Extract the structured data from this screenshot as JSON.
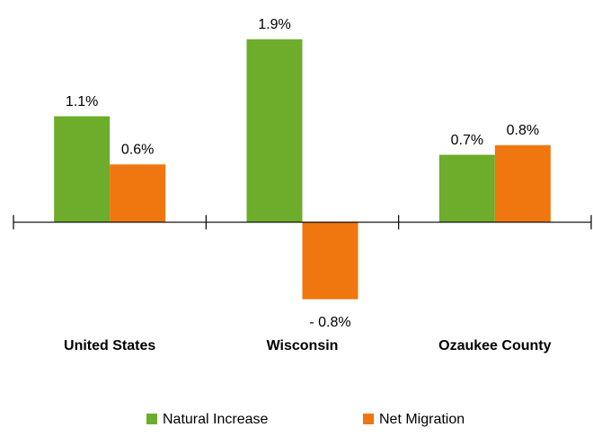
{
  "chart_data": {
    "type": "bar",
    "categories": [
      "United States",
      "Wisconsin",
      "Ozaukee County"
    ],
    "series": [
      {
        "name": "Natural Increase",
        "color": "#6eac2c",
        "values": [
          1.1,
          1.9,
          0.7
        ],
        "value_labels": [
          "1.1%",
          "1.9%",
          "0.7%"
        ]
      },
      {
        "name": "Net Migration",
        "color": "#f0760f",
        "values": [
          0.6,
          -0.8,
          0.8
        ],
        "value_labels": [
          "0.6%",
          "- 0.8%",
          "0.8%"
        ]
      }
    ],
    "ylim": [
      -1,
      2
    ],
    "legend": "bottom"
  }
}
